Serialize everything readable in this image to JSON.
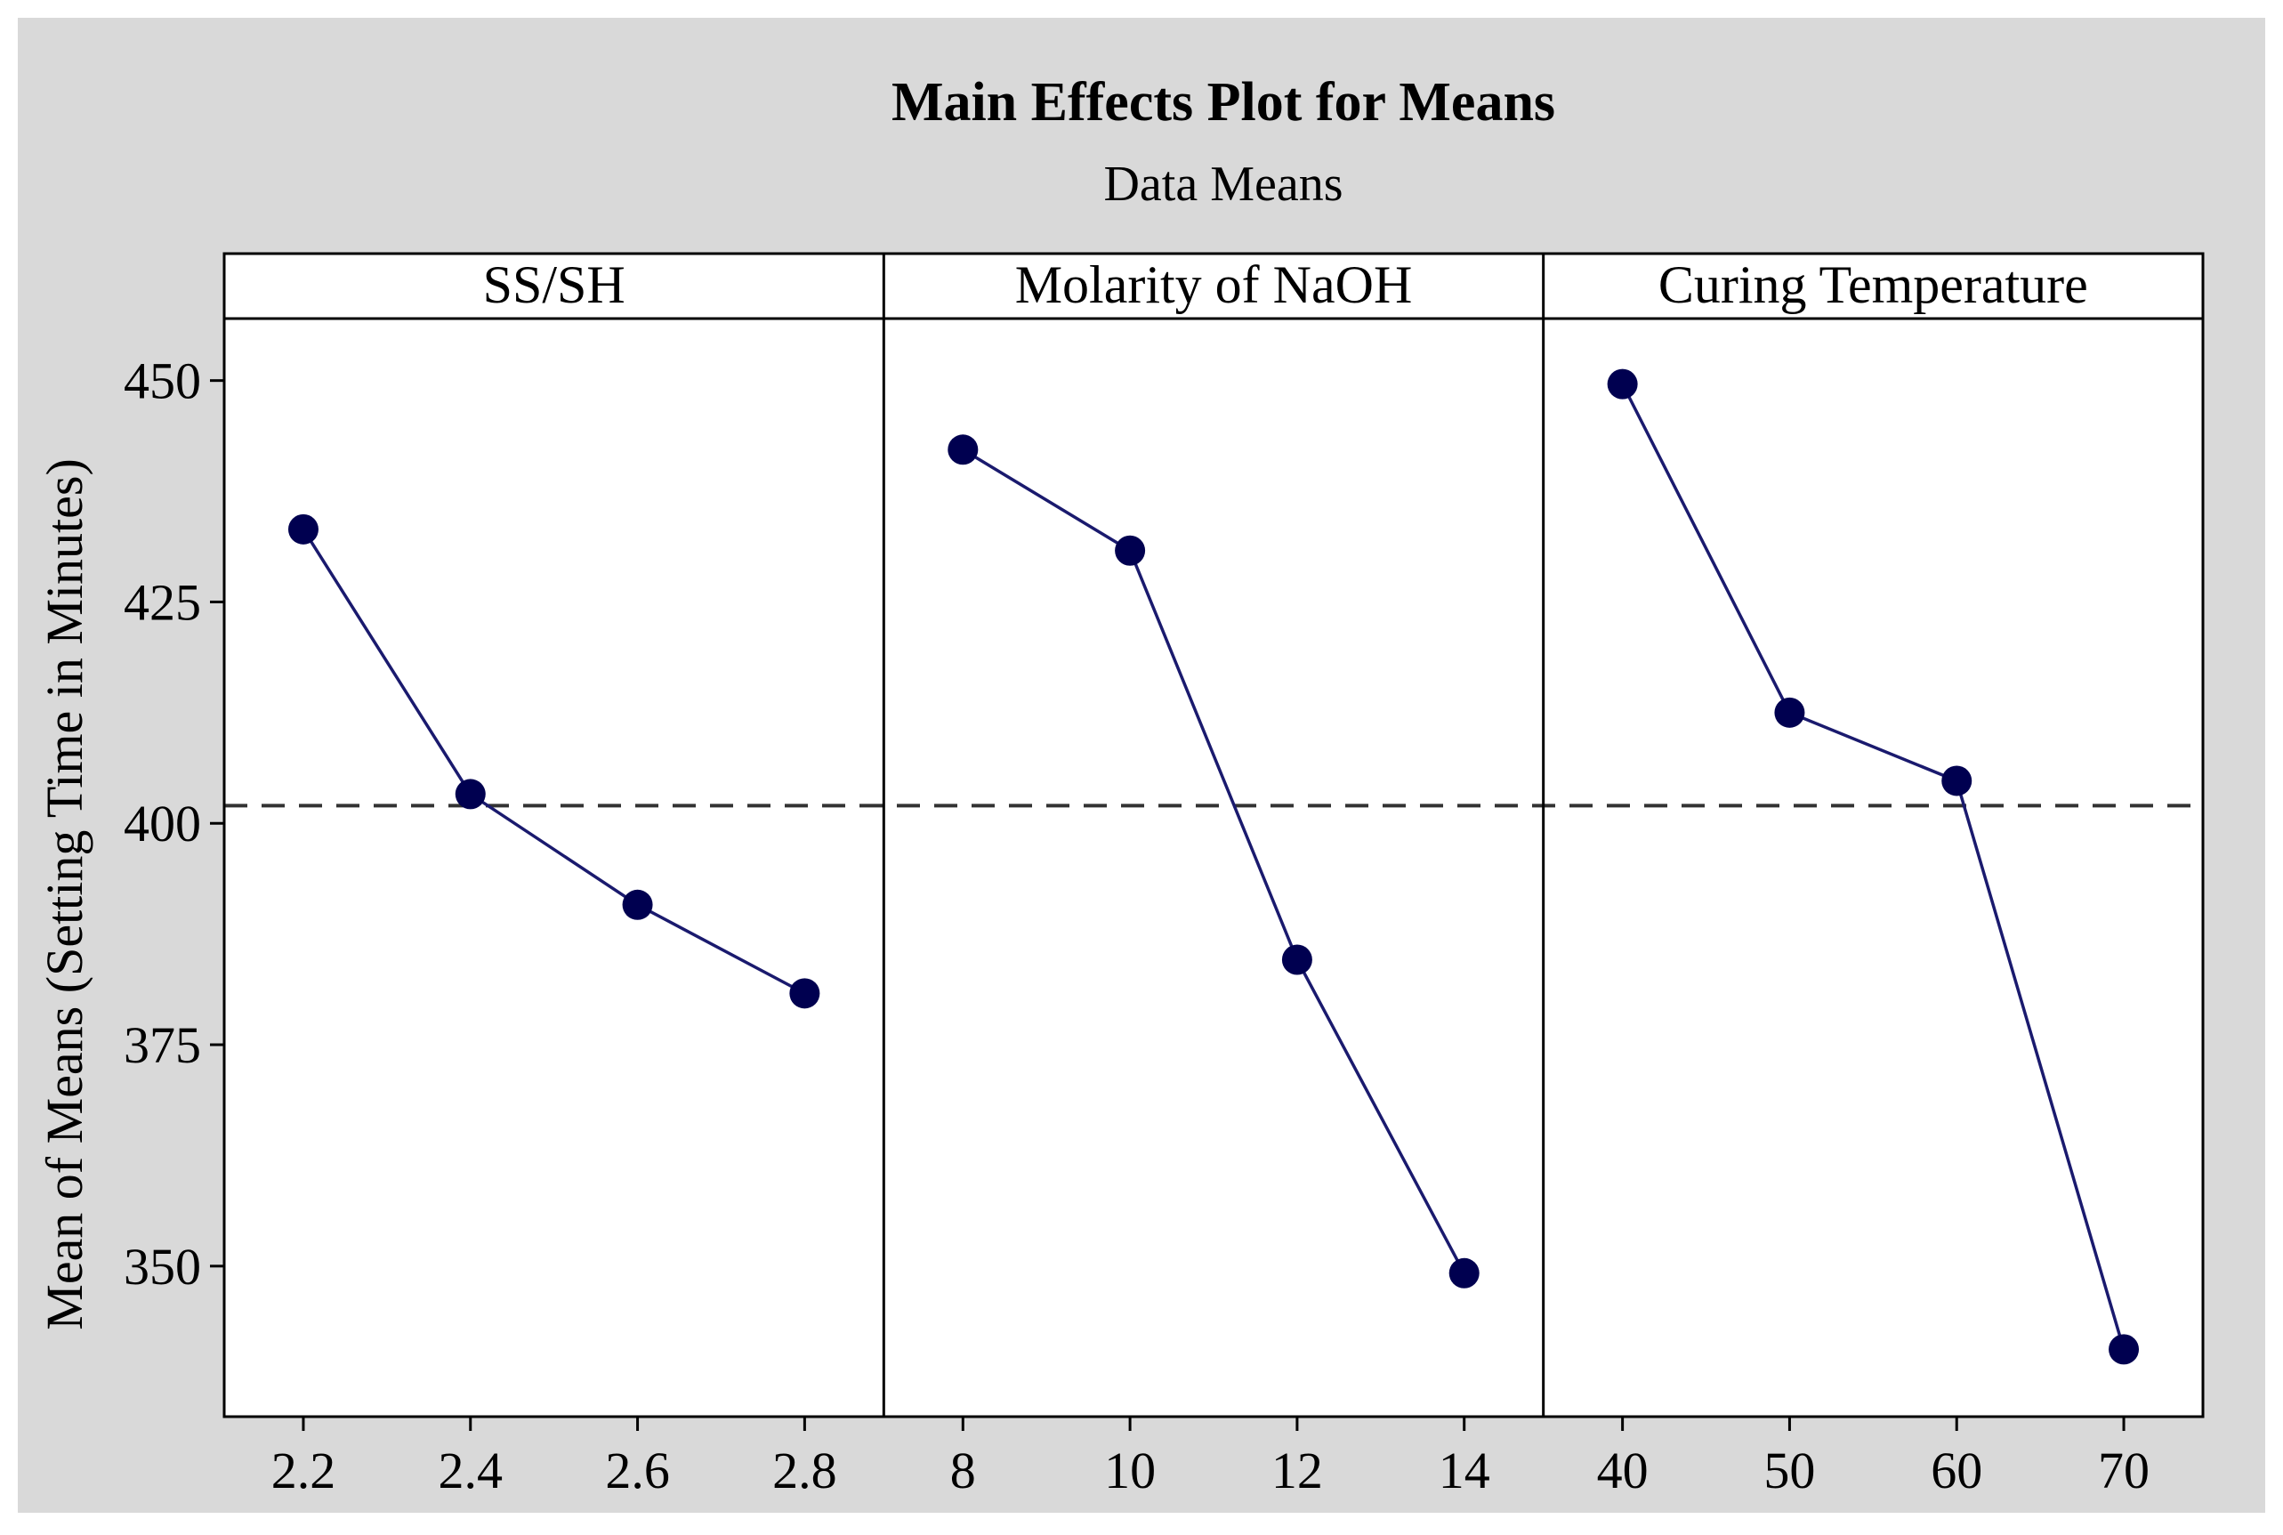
{
  "chart_data": {
    "type": "line",
    "title": "Main Effects Plot for Means",
    "subtitle": "Data Means",
    "ylabel": "Mean of Means (Setting Time in Minutes)",
    "ylim": [
      333,
      457
    ],
    "yticks": [
      350,
      375,
      400,
      425,
      450
    ],
    "reference_line": 402,
    "grid": false,
    "colors": {
      "background": "#d9d9d9",
      "plot": "#ffffff",
      "series": "#1a1a6e",
      "marker": "#000050",
      "reference": "#333333"
    },
    "panels": [
      {
        "label": "SS/SH",
        "x": [
          "2.2",
          "2.4",
          "2.6",
          "2.8"
        ],
        "values": [
          433.2,
          403.3,
          390.8,
          380.8
        ]
      },
      {
        "label": "Molarity of NaOH",
        "x": [
          "8",
          "10",
          "12",
          "14"
        ],
        "values": [
          442.2,
          430.8,
          384.6,
          349.2
        ]
      },
      {
        "label": "Curing Temperature",
        "x": [
          "40",
          "50",
          "60",
          "70"
        ],
        "values": [
          449.6,
          412.5,
          404.8,
          340.6
        ]
      }
    ]
  }
}
